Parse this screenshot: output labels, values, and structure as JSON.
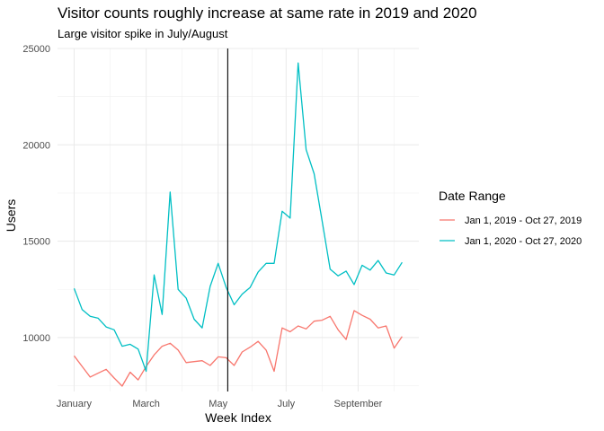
{
  "chart_data": {
    "type": "line",
    "title": "Visitor counts roughly increase at same rate in 2019 and 2020",
    "subtitle": "Large visitor spike in July/August",
    "xlabel": "Week Index",
    "ylabel": "Users",
    "ylim": [
      7200,
      25000
    ],
    "xlim": [
      0,
      45
    ],
    "grid": true,
    "legend_placement": "right",
    "legend_title": "Date Range",
    "y_ticks": [
      10000,
      15000,
      20000,
      25000
    ],
    "x_ticks": [
      {
        "label": "January",
        "week": 0
      },
      {
        "label": "March",
        "week": 9
      },
      {
        "label": "May",
        "week": 18
      },
      {
        "label": "July",
        "week": 26.5
      },
      {
        "label": "September",
        "week": 35.5
      }
    ],
    "vline": {
      "week": 19.2
    },
    "series": [
      {
        "name": "Jan 1, 2019 - Oct 27, 2019",
        "color": "#F8766D",
        "values": [
          9050,
          8500,
          7950,
          8150,
          8350,
          7900,
          7480,
          8200,
          7800,
          8500,
          9100,
          9550,
          9700,
          9350,
          8700,
          8750,
          8800,
          8550,
          9000,
          8950,
          8550,
          9250,
          9500,
          9800,
          9350,
          8250,
          10500,
          10300,
          10600,
          10450,
          10850,
          10900,
          11100,
          10400,
          9900,
          11400,
          11150,
          10950,
          10500,
          10600,
          9450,
          10050
        ]
      },
      {
        "name": "Jan 1, 2020 - Oct 27, 2020",
        "color": "#00BFC4",
        "values": [
          12550,
          11450,
          11100,
          11000,
          10550,
          10400,
          9550,
          9650,
          9400,
          8250,
          13250,
          11200,
          17550,
          12500,
          12050,
          10950,
          10500,
          12650,
          13850,
          12600,
          11700,
          12250,
          12600,
          13400,
          13850,
          13850,
          16550,
          16200,
          24250,
          19750,
          18500,
          16050,
          13550,
          13200,
          13450,
          12750,
          13750,
          13500,
          14000,
          13350,
          13250,
          13900
        ]
      }
    ]
  }
}
